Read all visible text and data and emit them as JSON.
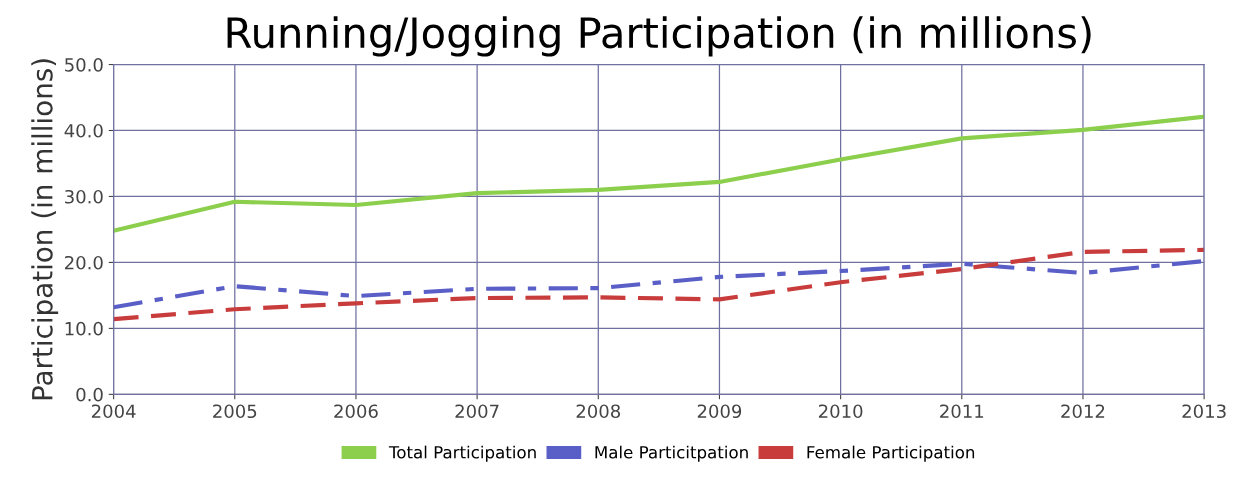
{
  "chart_data": {
    "type": "line",
    "title": "Running/Jogging Participation (in millions)",
    "ylabel": "Participation (in millions)",
    "x": [
      2004,
      2005,
      2006,
      2007,
      2008,
      2009,
      2010,
      2011,
      2012,
      2013
    ],
    "series": [
      {
        "name": "Total Participation",
        "color": "#8ccf4d",
        "line_style": "solid",
        "values": [
          24.8,
          29.2,
          28.7,
          30.5,
          31.0,
          32.2,
          35.6,
          38.8,
          40.1,
          42.1
        ]
      },
      {
        "name": "Male Particitpation",
        "color": "#5a5fc8",
        "line_style": "dashdot",
        "values": [
          13.2,
          16.4,
          14.9,
          16.0,
          16.1,
          17.8,
          18.7,
          19.8,
          18.4,
          20.2
        ]
      },
      {
        "name": "Female Participation",
        "color": "#c83c3c",
        "line_style": "dashed",
        "values": [
          11.4,
          12.9,
          13.8,
          14.6,
          14.7,
          14.4,
          17.0,
          19.0,
          21.6,
          21.9
        ]
      }
    ],
    "xlim": [
      2004,
      2013
    ],
    "xticks": [
      2004,
      2005,
      2006,
      2007,
      2008,
      2009,
      2010,
      2011,
      2012,
      2013
    ],
    "ylim": [
      0,
      50
    ],
    "yticks": [
      {
        "value": 0,
        "label": "0.0"
      },
      {
        "value": 10,
        "label": "10.0"
      },
      {
        "value": 20,
        "label": "20.0"
      },
      {
        "value": 30,
        "label": "30.0"
      },
      {
        "value": 40,
        "label": "40.0"
      },
      {
        "value": 50,
        "label": "50.0"
      }
    ],
    "grid": true,
    "legend": "bottom",
    "marker": "none"
  }
}
